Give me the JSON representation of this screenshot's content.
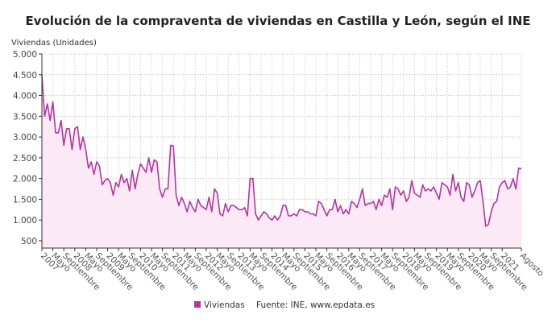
{
  "chart_data": {
    "type": "area",
    "title": "Evolución de la compraventa de viviendas en Castilla y León, según el INE",
    "ylabel": "Viviendas (Unidades)",
    "xlabel": "",
    "start": "2007-01",
    "end": "2021-08",
    "ylim": [
      325,
      5000
    ],
    "yticks": [
      "500",
      "1.000",
      "1.500",
      "2.000",
      "2.500",
      "3.000",
      "3.500",
      "4.000",
      "4.500",
      "5.000"
    ],
    "ytick_values": [
      500,
      1000,
      1500,
      2000,
      2500,
      3000,
      3500,
      4000,
      4500,
      5000
    ],
    "xtick_labels": [
      "2007",
      "Mayo",
      "Septiembre",
      "2008",
      "Mayo",
      "Septiembre",
      "2009",
      "Mayo",
      "Septiembre",
      "2010",
      "Mayo",
      "Septiembre",
      "2011",
      "Mayo",
      "Septiembre",
      "2012",
      "Mayo",
      "Septiembre",
      "2013",
      "Mayo",
      "Septiembre",
      "2014",
      "Mayo",
      "Septiembre",
      "2015",
      "Mayo",
      "Septiembre",
      "2016",
      "Mayo",
      "Septiembre",
      "2017",
      "Mayo",
      "Septiembre",
      "2018",
      "Mayo",
      "Septiembre",
      "2019",
      "Mayo",
      "Septiembre",
      "2020",
      "Mayo",
      "Septiembre",
      "2021",
      "Agosto"
    ],
    "grid": true,
    "legend_position": "bottom",
    "series": [
      {
        "name": "Viviendas",
        "color": "#b8339f",
        "fill": "#fbe9f6",
        "values": [
          4500,
          3500,
          3800,
          3400,
          3850,
          3100,
          3100,
          3400,
          2800,
          3200,
          3200,
          2700,
          3200,
          3250,
          2700,
          3000,
          2700,
          2250,
          2400,
          2100,
          2400,
          2300,
          1850,
          1950,
          2000,
          1900,
          1600,
          1900,
          1800,
          2100,
          1900,
          2000,
          1700,
          2200,
          1750,
          2100,
          2350,
          2250,
          2150,
          2500,
          2150,
          2450,
          2400,
          1750,
          1550,
          1750,
          1750,
          2800,
          2780,
          1600,
          1350,
          1550,
          1400,
          1200,
          1450,
          1300,
          1200,
          1500,
          1350,
          1300,
          1250,
          1550,
          1200,
          1750,
          1650,
          1150,
          1100,
          1400,
          1200,
          1350,
          1350,
          1300,
          1250,
          1250,
          1300,
          1100,
          2000,
          2000,
          1150,
          1000,
          1100,
          1200,
          1150,
          1050,
          1000,
          1100,
          1000,
          1100,
          1350,
          1350,
          1100,
          1100,
          1150,
          1100,
          1250,
          1250,
          1200,
          1200,
          1150,
          1150,
          1100,
          1450,
          1400,
          1250,
          1100,
          1250,
          1250,
          1500,
          1200,
          1350,
          1150,
          1250,
          1150,
          1450,
          1400,
          1300,
          1500,
          1750,
          1350,
          1400,
          1400,
          1450,
          1250,
          1500,
          1350,
          1600,
          1550,
          1750,
          1250,
          1800,
          1750,
          1600,
          1700,
          1450,
          1550,
          1950,
          1650,
          1600,
          1550,
          1850,
          1700,
          1750,
          1700,
          1800,
          1650,
          1500,
          1900,
          1850,
          1800,
          1600,
          2100,
          1700,
          1900,
          1550,
          1450,
          1900,
          1850,
          1550,
          1700,
          1900,
          1950,
          1450,
          850,
          900,
          1200,
          1400,
          1450,
          1800,
          1900,
          1950,
          1750,
          1800,
          2000,
          1750,
          2250,
          2230
        ]
      }
    ],
    "source": "Fuente: INE, www.epdata.es"
  }
}
